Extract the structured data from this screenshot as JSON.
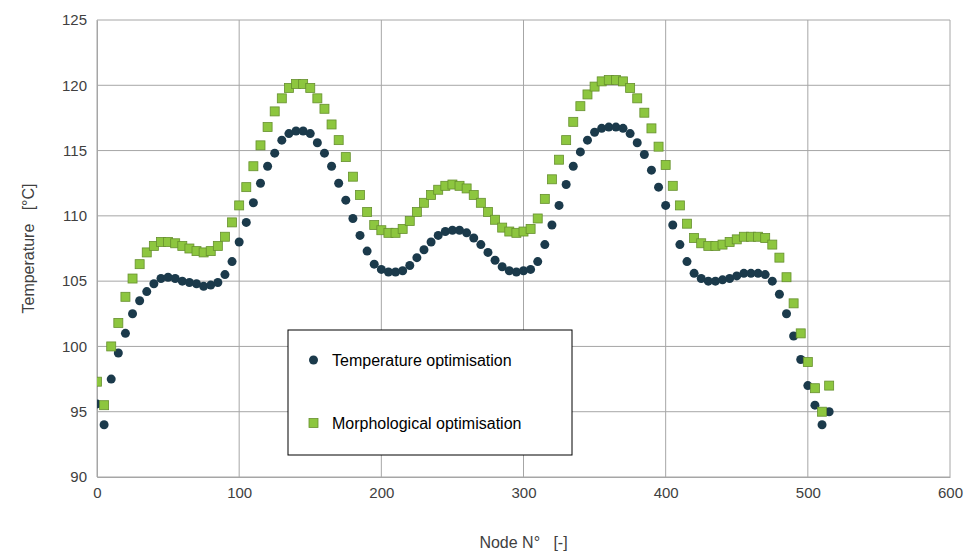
{
  "chart_data": {
    "type": "scatter",
    "x_label": "Node N°   [-]",
    "y_label": "Temperature   [°C]",
    "x": [
      0,
      5,
      10,
      15,
      20,
      25,
      30,
      35,
      40,
      45,
      50,
      55,
      60,
      65,
      70,
      75,
      80,
      85,
      90,
      95,
      100,
      105,
      110,
      115,
      120,
      125,
      130,
      135,
      140,
      145,
      150,
      155,
      160,
      165,
      170,
      175,
      180,
      185,
      190,
      195,
      200,
      205,
      210,
      215,
      220,
      225,
      230,
      235,
      240,
      245,
      250,
      255,
      260,
      265,
      270,
      275,
      280,
      285,
      290,
      295,
      300,
      305,
      310,
      315,
      320,
      325,
      330,
      335,
      340,
      345,
      350,
      355,
      360,
      365,
      370,
      375,
      380,
      385,
      390,
      395,
      400,
      405,
      410,
      415,
      420,
      425,
      430,
      435,
      440,
      445,
      450,
      455,
      460,
      465,
      470,
      475,
      480,
      485,
      490,
      495,
      500,
      505,
      510,
      515
    ],
    "series": [
      {
        "name": "Temperature optimisation",
        "color": "#1b3a4b",
        "marker": "circle",
        "values": [
          95.6,
          94.0,
          97.5,
          99.5,
          101.0,
          102.5,
          103.5,
          104.2,
          104.8,
          105.2,
          105.3,
          105.2,
          105.0,
          104.9,
          104.8,
          104.6,
          104.7,
          104.9,
          105.5,
          106.5,
          108.0,
          109.5,
          111.0,
          112.5,
          113.8,
          114.8,
          115.8,
          116.3,
          116.5,
          116.5,
          116.3,
          115.6,
          114.8,
          113.8,
          112.5,
          111.2,
          109.8,
          108.5,
          107.3,
          106.3,
          105.9,
          105.7,
          105.7,
          105.8,
          106.2,
          106.8,
          107.4,
          108.0,
          108.5,
          108.8,
          108.9,
          108.9,
          108.7,
          108.3,
          107.8,
          107.2,
          106.6,
          106.1,
          105.8,
          105.7,
          105.8,
          105.9,
          106.5,
          107.8,
          109.3,
          110.8,
          112.4,
          113.8,
          114.9,
          115.8,
          116.4,
          116.7,
          116.8,
          116.8,
          116.7,
          116.3,
          115.6,
          114.7,
          113.5,
          112.2,
          110.8,
          109.3,
          107.8,
          106.5,
          105.6,
          105.2,
          105.0,
          105.0,
          105.1,
          105.2,
          105.4,
          105.6,
          105.6,
          105.6,
          105.5,
          105.0,
          104.0,
          102.5,
          100.8,
          99.0,
          97.0,
          95.5,
          94.0,
          95.0
        ]
      },
      {
        "name": "Morphological optimisation",
        "color": "#8dc63f",
        "marker": "square",
        "values": [
          97.3,
          95.5,
          100.0,
          101.8,
          103.8,
          105.2,
          106.3,
          107.2,
          107.7,
          108.0,
          108.0,
          107.9,
          107.7,
          107.5,
          107.3,
          107.2,
          107.3,
          107.7,
          108.4,
          109.5,
          110.8,
          112.2,
          113.8,
          115.4,
          116.8,
          118.0,
          119.0,
          119.8,
          120.1,
          120.1,
          119.8,
          119.0,
          118.2,
          117.0,
          115.8,
          114.5,
          113.0,
          111.6,
          110.3,
          109.3,
          108.9,
          108.7,
          108.7,
          109.0,
          109.6,
          110.3,
          111.0,
          111.6,
          112.0,
          112.3,
          112.4,
          112.3,
          112.1,
          111.6,
          111.0,
          110.3,
          109.7,
          109.1,
          108.8,
          108.7,
          108.8,
          109.0,
          109.8,
          111.3,
          112.8,
          114.3,
          115.8,
          117.2,
          118.4,
          119.3,
          119.9,
          120.3,
          120.4,
          120.4,
          120.3,
          119.8,
          119.0,
          117.9,
          116.7,
          115.3,
          113.9,
          112.3,
          110.8,
          109.4,
          108.3,
          107.9,
          107.7,
          107.7,
          107.8,
          108.0,
          108.2,
          108.4,
          108.4,
          108.4,
          108.3,
          107.8,
          106.8,
          105.3,
          103.3,
          101.0,
          98.8,
          96.8,
          95.0,
          97.0
        ]
      }
    ],
    "xlim": [
      0,
      600
    ],
    "xticks": [
      0,
      100,
      200,
      300,
      400,
      500,
      600
    ],
    "ylim": [
      90,
      125
    ],
    "yticks": [
      90,
      95,
      100,
      105,
      110,
      115,
      120,
      125
    ],
    "grid": true,
    "legend": "bottom"
  }
}
